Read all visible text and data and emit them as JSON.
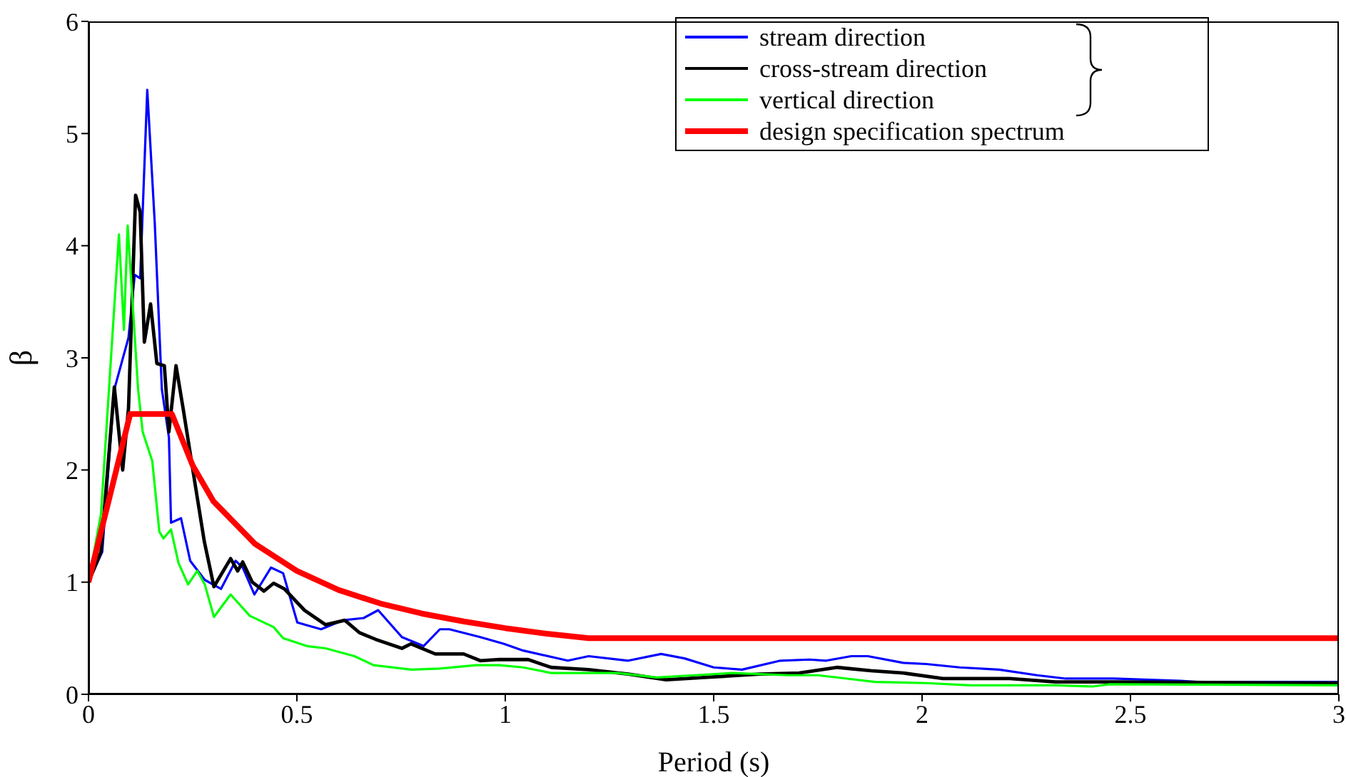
{
  "chart_data": {
    "type": "line",
    "xlabel": "Period (s)",
    "ylabel": "β",
    "xlim": [
      0,
      3
    ],
    "xticks": [
      0,
      0.5,
      1,
      1.5,
      2,
      2.5,
      3
    ],
    "ylim": [
      0,
      6
    ],
    "yticks": [
      0,
      1,
      2,
      3,
      4,
      5,
      6
    ],
    "grid": false,
    "legend": "top right",
    "marker": "none",
    "line_style": "solid",
    "series": [
      {
        "name": "stream direction",
        "color": "#0000ff",
        "x": [
          0,
          0.033,
          0.062,
          0.096,
          0.111,
          0.124,
          0.141,
          0.159,
          0.176,
          0.193,
          0.198,
          0.222,
          0.244,
          0.279,
          0.318,
          0.353,
          0.37,
          0.398,
          0.438,
          0.467,
          0.501,
          0.558,
          0.61,
          0.66,
          0.695,
          0.752,
          0.804,
          0.843,
          0.866,
          0.94,
          0.997,
          1.043,
          1.15,
          1.2,
          1.295,
          1.374,
          1.43,
          1.5,
          1.568,
          1.66,
          1.73,
          1.77,
          1.83,
          1.87,
          1.955,
          2.01,
          2.09,
          2.185,
          2.276,
          2.345,
          2.459,
          2.62,
          2.66,
          3
        ],
        "values": [
          1.0,
          1.27,
          2.72,
          3.18,
          3.74,
          3.71,
          5.39,
          4.2,
          2.72,
          2.29,
          1.53,
          1.57,
          1.19,
          1.02,
          0.94,
          1.19,
          1.13,
          0.89,
          1.13,
          1.08,
          0.64,
          0.58,
          0.66,
          0.68,
          0.75,
          0.51,
          0.43,
          0.58,
          0.58,
          0.51,
          0.45,
          0.39,
          0.3,
          0.34,
          0.3,
          0.36,
          0.32,
          0.24,
          0.22,
          0.3,
          0.31,
          0.3,
          0.34,
          0.34,
          0.28,
          0.27,
          0.24,
          0.22,
          0.17,
          0.14,
          0.14,
          0.12,
          0.11,
          0.11
        ]
      },
      {
        "name": "cross-stream direction",
        "color": "#000000",
        "x": [
          0,
          0.03,
          0.062,
          0.082,
          0.096,
          0.113,
          0.124,
          0.134,
          0.149,
          0.164,
          0.182,
          0.193,
          0.21,
          0.227,
          0.256,
          0.278,
          0.301,
          0.341,
          0.358,
          0.37,
          0.393,
          0.421,
          0.444,
          0.47,
          0.518,
          0.569,
          0.615,
          0.65,
          0.689,
          0.752,
          0.774,
          0.832,
          0.86,
          0.9,
          0.94,
          0.986,
          1.055,
          1.11,
          1.2,
          1.295,
          1.386,
          1.477,
          1.61,
          1.705,
          1.797,
          1.877,
          1.955,
          2.05,
          2.21,
          2.32,
          2.41,
          2.46,
          3
        ],
        "values": [
          1.0,
          1.27,
          2.74,
          2.0,
          2.55,
          4.45,
          4.3,
          3.14,
          3.48,
          2.95,
          2.93,
          2.34,
          2.93,
          2.55,
          1.87,
          1.36,
          0.96,
          1.21,
          1.1,
          1.18,
          1.0,
          0.92,
          0.99,
          0.94,
          0.75,
          0.62,
          0.66,
          0.55,
          0.49,
          0.41,
          0.45,
          0.36,
          0.36,
          0.36,
          0.3,
          0.31,
          0.31,
          0.24,
          0.22,
          0.18,
          0.13,
          0.15,
          0.18,
          0.19,
          0.24,
          0.21,
          0.19,
          0.14,
          0.14,
          0.11,
          0.11,
          0.11,
          0.1
        ]
      },
      {
        "name": "vertical direction",
        "color": "#00ff00",
        "x": [
          0,
          0.03,
          0.073,
          0.085,
          0.094,
          0.119,
          0.13,
          0.153,
          0.17,
          0.18,
          0.198,
          0.216,
          0.239,
          0.261,
          0.279,
          0.301,
          0.341,
          0.387,
          0.444,
          0.467,
          0.524,
          0.569,
          0.638,
          0.684,
          0.775,
          0.843,
          0.93,
          0.986,
          1.043,
          1.11,
          1.18,
          1.27,
          1.363,
          1.454,
          1.545,
          1.68,
          1.75,
          1.82,
          1.887,
          2.01,
          2.116,
          2.32,
          2.41,
          2.45,
          3
        ],
        "values": [
          1.0,
          1.61,
          4.1,
          3.25,
          4.18,
          2.72,
          2.34,
          2.08,
          1.45,
          1.39,
          1.47,
          1.17,
          0.98,
          1.1,
          0.98,
          0.69,
          0.89,
          0.7,
          0.6,
          0.5,
          0.43,
          0.41,
          0.34,
          0.26,
          0.22,
          0.23,
          0.26,
          0.26,
          0.24,
          0.19,
          0.19,
          0.19,
          0.15,
          0.17,
          0.19,
          0.17,
          0.17,
          0.14,
          0.11,
          0.1,
          0.08,
          0.08,
          0.07,
          0.09,
          0.08
        ]
      },
      {
        "name": "design specification spectrum",
        "color": "#ff0000",
        "x": [
          0,
          0.1,
          0.2,
          0.25,
          0.3,
          0.4,
          0.5,
          0.6,
          0.7,
          0.8,
          0.9,
          1.0,
          1.1,
          1.2,
          3
        ],
        "values": [
          1.0,
          2.5,
          2.5,
          2.04,
          1.72,
          1.34,
          1.1,
          0.93,
          0.81,
          0.72,
          0.65,
          0.59,
          0.54,
          0.5,
          0.5
        ]
      }
    ]
  }
}
